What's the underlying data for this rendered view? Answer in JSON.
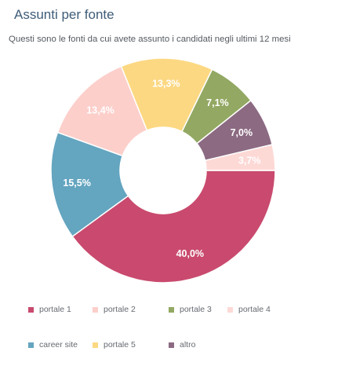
{
  "page": {
    "title": "Assunti per fonte",
    "subtitle": "Questi sono le fonti da cui avete assunto i candidati negli ultimi 12 mesi"
  },
  "chart_data": {
    "type": "pie",
    "title": "Assunti per fonte",
    "subtitle": "Questi sono le fonti da cui avete assunto i candidati negli ultimi 12 mesi",
    "donut": true,
    "legend_position": "bottom",
    "categories": [
      "portale 1",
      "portale 2",
      "portale 3",
      "portale 4",
      "career site",
      "portale 5",
      "altro"
    ],
    "values": [
      40.0,
      13.4,
      7.1,
      3.7,
      15.5,
      13.3,
      7.0
    ],
    "labels": [
      "40,0%",
      "13,4%",
      "7,1%",
      "3,7%",
      "15,5%",
      "13,3%",
      "7,0%"
    ],
    "colors": [
      "#c94a6e",
      "#fccfcb",
      "#93a862",
      "#fdd9d6",
      "#64a5c0",
      "#fcd882",
      "#8c6a82"
    ],
    "label_colors": [
      "#ffffff",
      "#ffffff",
      "#ffffff",
      "#ffffff",
      "#ffffff",
      "#ffffff",
      "#ffffff"
    ],
    "slice_order": [
      "portale 1",
      "career site",
      "portale 2",
      "portale 5",
      "portale 3",
      "altro",
      "portale 4"
    ]
  }
}
